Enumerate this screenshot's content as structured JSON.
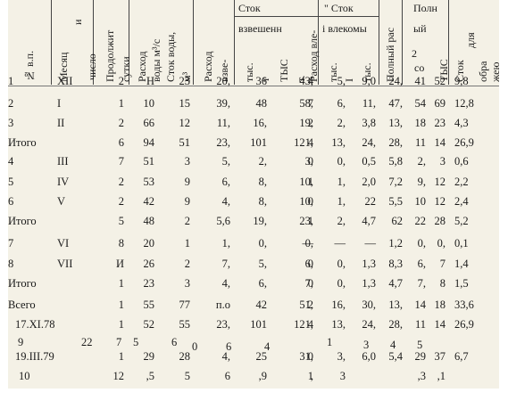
{
  "header": {
    "no": "№ в.п.",
    "month": "Месяц",
    "month_extra": "и",
    "number": "число",
    "duration": "Продолжит",
    "duration_unit": "сутки",
    "water_discharge": "Расход",
    "water_discharge_unit": "воды м³/с",
    "water_runoff": "Сток воды,",
    "water_runoff_unit": "м³",
    "suspended_discharge": "Расход",
    "suspended_discharge_2": "взве-",
    "runoff": "Сток",
    "suspended": "взвешенн",
    "thousand_1": "тыс.",
    "thousand_1_unit": "т",
    "thousand_2": "ТЫС",
    "thousand_2_unit": "т.",
    "bedload_discharge": "Расход вле-",
    "runoff_bedload": "\" Сток",
    "bedload": "і влекомы",
    "thousand_3": "тыс.",
    "thousand_3_unit": "I",
    "thousand_4": "тыс.",
    "total_discharge": "Полный рас",
    "total": "Полн",
    "total_2": "ый",
    "total_sub": "2",
    "total_sub_2": "со",
    "thousand_5": "ТЫС",
    "last_1": "Сток",
    "last_2": "для",
    "last_3": "обра",
    "last_4": "жею",
    "last_5": "зу"
  },
  "rows": [
    {
      "no": "1",
      "month": "ХII",
      "dur": "2",
      "q": "Н",
      "w": "23",
      "qs": "20,",
      "s1": "36",
      "s2": "43,",
      "qb": "4",
      "b1": "5,",
      "b2": "9,0",
      "qt": "24,",
      "t1": "41",
      "t2": "52",
      "x": "9,8"
    },
    {
      "no": "2",
      "month": "I",
      "dur": "1",
      "q": "10",
      "w": "15",
      "qs": "39,",
      "s1": "48",
      "s2": "58,",
      "qb": "7",
      "b1": "6,",
      "b2": "11,",
      "qt": "47,",
      "t1": "54",
      "t2": "69",
      "x": "12,8"
    },
    {
      "no": "3",
      "month": "II",
      "dur": "2",
      "q": "66",
      "w": "12",
      "qs": "11,",
      "s1": "16,",
      "s2": "19,",
      "qb": "2",
      "b1": "2,",
      "b2": "3,8",
      "qt": "13,",
      "t1": "18",
      "t2": "23",
      "x": "4,3"
    },
    {
      "no": "Итого",
      "month": "",
      "dur": "6",
      "q": "94",
      "w": "51",
      "qs": "23,",
      "s1": "101",
      "s2": "121,",
      "qb": "4",
      "b1": "13,",
      "b2": "24,",
      "qt": "28,",
      "t1": "11",
      "t2": "14",
      "x": "26,9"
    },
    {
      "no": "4",
      "month": "III",
      "dur": "7",
      "q": "51",
      "w": "3",
      "qs": "5,",
      "s1": "2,",
      "s2": "3,",
      "qb": "0",
      "b1": "0,",
      "b2": "0,5",
      "qt": "5,8",
      "t1": "2,",
      "t2": "3",
      "x": "0,6"
    },
    {
      "no": "5",
      "month": "IV",
      "dur": "2",
      "q": "53",
      "w": "9",
      "qs": "6,",
      "s1": "8,",
      "s2": "10,",
      "qb": "1",
      "b1": "1,",
      "b2": "2,0",
      "qt": "7,2",
      "t1": "9,",
      "t2": "12",
      "x": "2,2"
    },
    {
      "no": "6",
      "month": "V",
      "dur": "2",
      "q": "42",
      "w": "9",
      "qs": "4,",
      "s1": "8,",
      "s2": "10,",
      "qb": "0",
      "b1": "1,",
      "b2": "22",
      "qt": "5,5",
      "t1": "10",
      "t2": "12",
      "x": "2,4"
    },
    {
      "no": "Итого",
      "month": "",
      "dur": "5",
      "q": "48",
      "w": "2",
      "qs": "5,6",
      "s1": "19,",
      "s2": "23,",
      "qb": "1",
      "b1": "2,",
      "b2": "4,7",
      "qt": "62",
      "t1": "22",
      "t2": "28",
      "x": "5,2"
    },
    {
      "no": "7",
      "month": "VI",
      "dur": "8",
      "q": "20",
      "w": "1",
      "qs": "1,",
      "s1": "0,",
      "s2": "0,",
      "qb": "—",
      "b1": "—",
      "b2": "—",
      "qt": "1,2",
      "t1": "0,",
      "t2": "0,",
      "x": "0,1"
    },
    {
      "no": "8",
      "month": "VII",
      "dur": "И",
      "q": "26",
      "w": "2",
      "qs": "7,",
      "s1": "5,",
      "s2": "6,",
      "qb": "0",
      "b1": "0,",
      "b2": "1,3",
      "qt": "8,3",
      "t1": "6,",
      "t2": "7",
      "x": "1,4"
    },
    {
      "no": "Итого",
      "month": "",
      "dur": "1",
      "q": "23",
      "w": "3",
      "qs": "4,",
      "s1": "6,",
      "s2": "7,",
      "qb": "0",
      "b1": "0,",
      "b2": "1,3",
      "qt": "4,7",
      "t1": "7,",
      "t2": "8",
      "x": "1,5"
    },
    {
      "no": "Всего",
      "month": "",
      "dur": "1",
      "q": "55",
      "w": "77",
      "qs": "п.о",
      "s1": "42",
      "s2": "51,",
      "qb": "2",
      "b1": "16,",
      "b2": "30,",
      "qt": "13,",
      "t1": "14",
      "t2": "18",
      "x": "33,6"
    },
    {
      "no": "17.XI.78",
      "month": "",
      "dur": "1",
      "q": "52",
      "w": "55",
      "qs": "23,",
      "s1": "101",
      "s2": "121,",
      "qb": "4",
      "b1": "13,",
      "b2": "24,",
      "qt": "28,",
      "t1": "11",
      "t2": "14",
      "x": "26,9"
    },
    {
      "no": "19.III.79",
      "month": "",
      "dur": "1",
      "q": "29",
      "w": "28",
      "qs": "4,",
      "s1": "25",
      "s2": "31,",
      "qb": "0",
      "b1": "3,",
      "b2": "6,0",
      "qt": "5,4",
      "t1": "29",
      "t2": "37",
      "x": "6,7"
    },
    {
      "no": "10",
      "month": "",
      "dur": "12",
      "q": ",5",
      "w": "5",
      "qs": "6",
      "s1": ",9",
      "s2": "1",
      "qb": ",",
      "b1": "3",
      "b2": "",
      "qt": "",
      "t1": ",3",
      "t2": ",1",
      "x": ""
    }
  ],
  "stray": [
    "9",
    "22",
    "7",
    "5",
    "6",
    "0",
    "6",
    "4",
    "1",
    "3",
    "4",
    "5"
  ]
}
